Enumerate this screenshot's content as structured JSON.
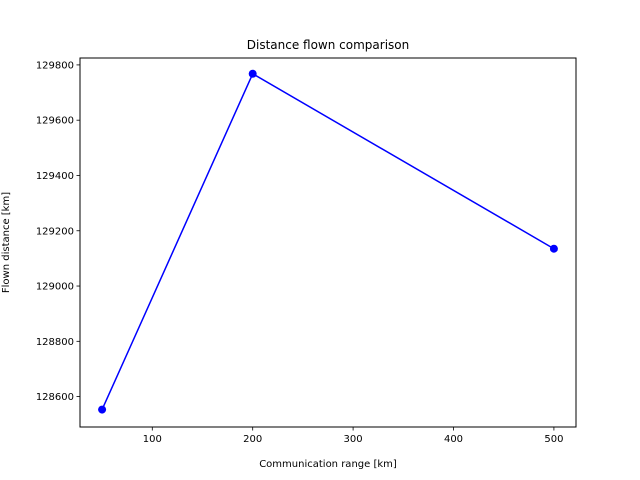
{
  "chart_data": {
    "type": "line",
    "title": "Distance flown comparison",
    "xlabel": "Communication range [km]",
    "ylabel": "Flown distance [km]",
    "xlim": [
      28,
      522
    ],
    "ylim": [
      128490,
      129825
    ],
    "xticks": [
      100,
      200,
      300,
      400,
      500
    ],
    "yticks": [
      128600,
      128800,
      129000,
      129200,
      129400,
      129600,
      129800
    ],
    "grid": false,
    "series": [
      {
        "color": "#0000ff",
        "marker": "circle",
        "x": [
          50,
          200,
          500
        ],
        "y": [
          128553,
          129768,
          129135
        ]
      }
    ]
  }
}
